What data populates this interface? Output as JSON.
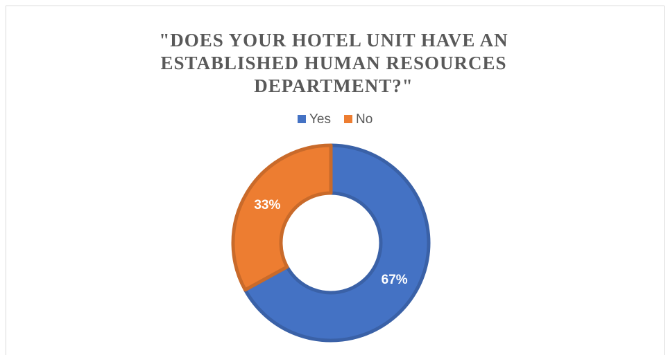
{
  "chart_data": {
    "type": "pie",
    "title": "\"DOES YOUR HOTEL UNIT HAVE AN ESTABLISHED HUMAN RESOURCES DEPARTMENT?\"",
    "categories": [
      "Yes",
      "No"
    ],
    "values": [
      67,
      33
    ],
    "value_labels": [
      "67%",
      "33%"
    ],
    "colors": [
      "#4472c4",
      "#ed7d31"
    ],
    "donut": true,
    "legend": "top"
  }
}
